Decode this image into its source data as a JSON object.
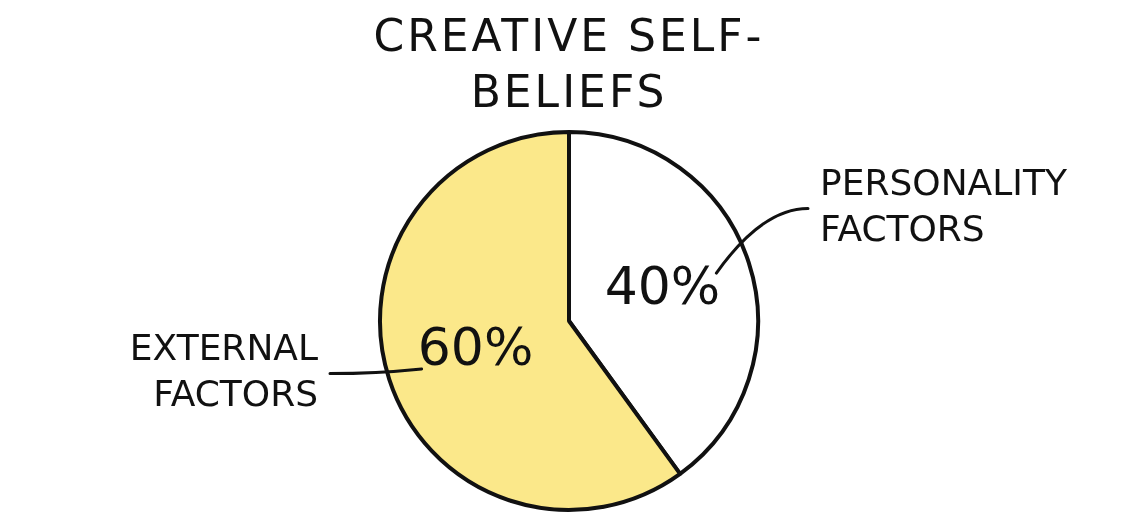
{
  "chart_data": {
    "type": "pie",
    "title": "CREATIVE SELF-BELIEFS",
    "categories": [
      "PERSONALITY FACTORS",
      "EXTERNAL FACTORS"
    ],
    "values": [
      40,
      60
    ],
    "value_labels": [
      "40%",
      "60%"
    ],
    "colors": [
      "#ffffff",
      "#fbe88a"
    ]
  }
}
